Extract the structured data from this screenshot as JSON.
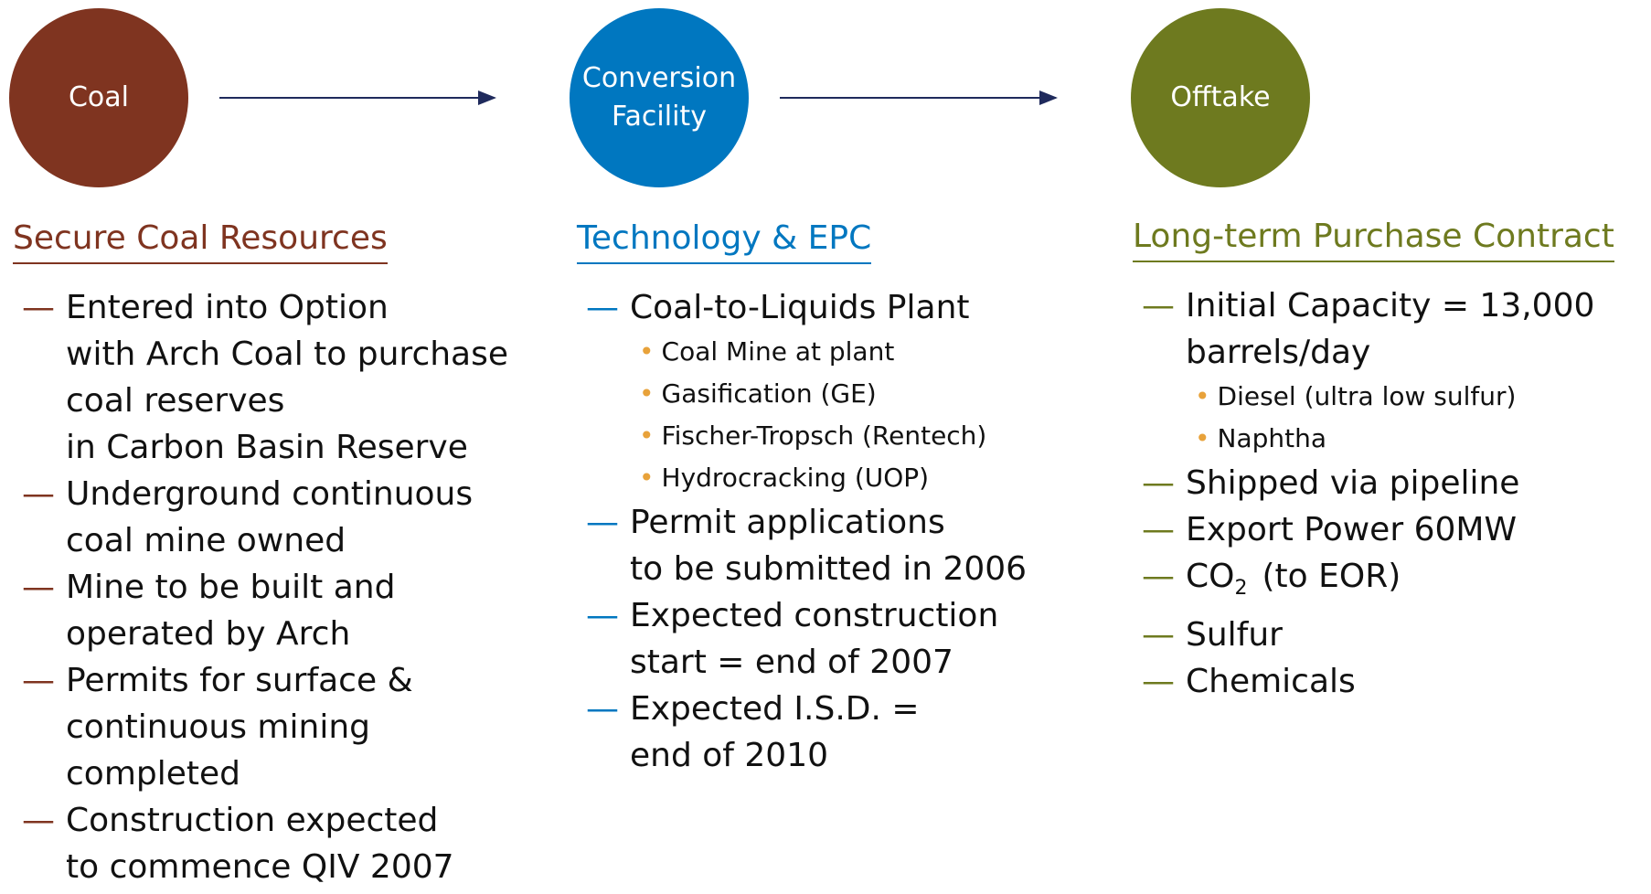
{
  "columns": [
    {
      "circle": [
        "Coal"
      ],
      "heading": "Secure Coal Resources",
      "items": [
        {
          "lines": [
            "Entered into Option",
            "with Arch Coal to purchase",
            "coal reserves",
            "in Carbon Basin Reserve"
          ]
        },
        {
          "lines": [
            "Underground continuous",
            "coal mine owned"
          ]
        },
        {
          "lines": [
            "Mine to be built and",
            "operated by Arch"
          ]
        },
        {
          "lines": [
            "Permits for surface &",
            "continuous mining",
            "completed"
          ]
        },
        {
          "lines": [
            "Construction expected",
            "to commence QIV 2007"
          ]
        }
      ]
    },
    {
      "circle": [
        "Conversion",
        "Facility"
      ],
      "heading": "Technology & EPC",
      "items": [
        {
          "lines": [
            "Coal-to-Liquids Plant"
          ],
          "subitems": [
            "Coal Mine at plant",
            "Gasification (GE)",
            "Fischer-Tropsch (Rentech)",
            "Hydrocracking (UOP)"
          ]
        },
        {
          "lines": [
            "Permit applications",
            "to be submitted in 2006"
          ]
        },
        {
          "lines": [
            "Expected construction",
            "start = end of 2007"
          ]
        },
        {
          "lines": [
            "Expected I.S.D. =",
            "end of 2010"
          ]
        }
      ]
    },
    {
      "circle": [
        "Offtake"
      ],
      "heading": "Long-term Purchase Contract",
      "items": [
        {
          "lines": [
            "Initial Capacity = 13,000",
            "barrels/day"
          ],
          "subitems": [
            "Diesel (ultra low sulfur)",
            "Naphtha"
          ]
        },
        {
          "lines": [
            "Shipped via pipeline"
          ]
        },
        {
          "lines": [
            "Export Power 60MW"
          ]
        },
        {
          "lines": [
            "CO"
          ],
          "subscript": "2",
          "suffix": "(to EOR)"
        },
        {
          "lines": [
            "Sulfur"
          ]
        },
        {
          "lines": [
            "Chemicals"
          ]
        }
      ]
    }
  ]
}
